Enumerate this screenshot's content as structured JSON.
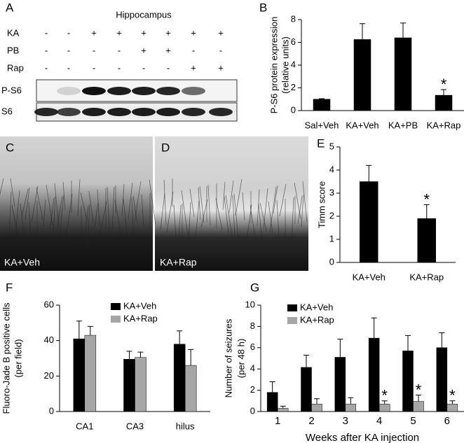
{
  "blot_panel": {
    "label": "A",
    "title": "Hippocampus",
    "rows": [
      {
        "label": "KA",
        "marks": [
          "-",
          "-",
          "+",
          "+",
          "+",
          "+",
          "+",
          "+"
        ]
      },
      {
        "label": "PB",
        "marks": [
          "-",
          "-",
          "-",
          "-",
          "+",
          "+",
          "-",
          "-"
        ]
      },
      {
        "label": "Rap",
        "marks": [
          "-",
          "-",
          "-",
          "-",
          "-",
          "-",
          "+",
          "+"
        ]
      }
    ],
    "blots": [
      "P-S6",
      "S6"
    ]
  },
  "image_panels": [
    {
      "label": "C",
      "caption": "KA+Veh"
    },
    {
      "label": "D",
      "caption": "KA+Rap"
    }
  ],
  "chart_data": [
    {
      "type": "bar",
      "label": "B",
      "ylabel": [
        "P-S6 protein expression",
        "(relative units)"
      ],
      "categories": [
        "Sal+Veh",
        "KA+Veh",
        "KA+PB",
        "KA+Rap"
      ],
      "series": [
        {
          "color": "#000000",
          "values": [
            1.0,
            6.25,
            6.4,
            1.35
          ],
          "errors": [
            0.05,
            1.4,
            1.3,
            0.5
          ],
          "annotations": [
            null,
            null,
            null,
            "*"
          ]
        }
      ],
      "ylim": [
        0,
        8
      ],
      "yticks": [
        0,
        2,
        4,
        6,
        8
      ]
    },
    {
      "type": "bar",
      "label": "E",
      "ylabel": [
        "Timm score"
      ],
      "categories": [
        "KA+Veh",
        "KA+Rap"
      ],
      "series": [
        {
          "color": "#000000",
          "values": [
            3.5,
            1.9
          ],
          "errors": [
            0.7,
            0.6
          ],
          "annotations": [
            null,
            "*"
          ]
        }
      ],
      "ylim": [
        0,
        5
      ],
      "yticks": [
        0,
        1,
        2,
        3,
        4,
        5
      ]
    },
    {
      "type": "bar",
      "label": "F",
      "ylabel": [
        "Fluoro-Jade B positive cells",
        "(per field)"
      ],
      "categories": [
        "CA1",
        "CA3",
        "hilus"
      ],
      "series": [
        {
          "name": "KA+Veh",
          "color": "#000000",
          "values": [
            41,
            29.5,
            38
          ],
          "errors": [
            10,
            4.5,
            7.5
          ]
        },
        {
          "name": "KA+Rap",
          "color": "#a6a6a6",
          "values": [
            43,
            30.5,
            26
          ],
          "errors": [
            5,
            3,
            9
          ]
        }
      ],
      "ylim": [
        0,
        60
      ],
      "yticks": [
        0,
        20,
        40,
        60
      ],
      "legend": "top-right"
    },
    {
      "type": "bar",
      "label": "G",
      "xlabel": "Weeks after KA injection",
      "ylabel": [
        "Number of seizures",
        "(per 48 h)"
      ],
      "categories": [
        "1",
        "2",
        "3",
        "4",
        "5",
        "6"
      ],
      "series": [
        {
          "name": "KA+Veh",
          "color": "#000000",
          "values": [
            1.8,
            4.15,
            5.1,
            6.9,
            5.7,
            6.0
          ],
          "errors": [
            1.0,
            1.15,
            1.7,
            1.9,
            1.45,
            1.4
          ]
        },
        {
          "name": "KA+Rap",
          "color": "#a6a6a6",
          "values": [
            0.3,
            0.7,
            0.7,
            0.7,
            0.95,
            0.7
          ],
          "errors": [
            0.2,
            0.5,
            0.6,
            0.3,
            0.6,
            0.3
          ],
          "annotations": [
            null,
            null,
            null,
            "*",
            "*",
            "*"
          ]
        }
      ],
      "ylim": [
        0,
        10
      ],
      "yticks": [
        0,
        2,
        4,
        6,
        8,
        10
      ],
      "legend": "top-left"
    }
  ]
}
